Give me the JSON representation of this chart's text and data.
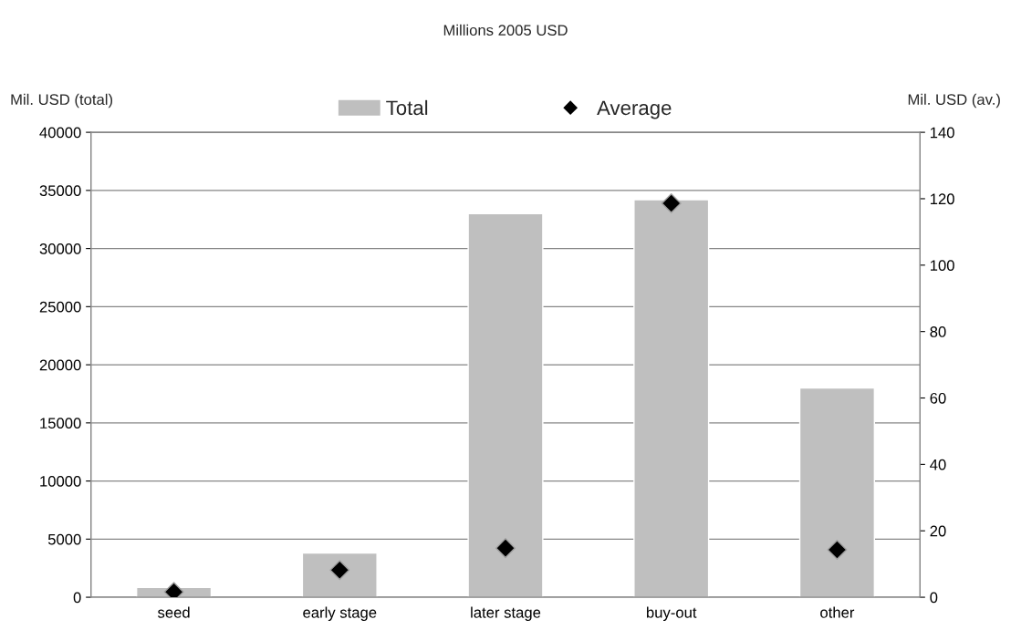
{
  "chart_data": {
    "type": "bar",
    "title": "Millions 2005 USD",
    "ylabel": "Mil. USD (total)",
    "y2label": "Mil. USD (av.)",
    "categories": [
      "seed",
      "early stage",
      "later stage",
      "buy-out",
      "other"
    ],
    "series": [
      {
        "name": "Total",
        "color": "#bfbfbf",
        "values": [
          850,
          3800,
          33000,
          34200,
          18000
        ]
      },
      {
        "name": "Average",
        "type": "scatter",
        "axis": "y2",
        "marker": "diamond",
        "color": "#000000",
        "values": [
          1.6,
          8.2,
          14.8,
          118.6,
          14.3
        ]
      }
    ],
    "ylim": [
      0,
      40000
    ],
    "yticks": [
      0,
      5000,
      10000,
      15000,
      20000,
      25000,
      30000,
      35000,
      40000
    ],
    "y2lim": [
      0,
      140
    ],
    "y2ticks": [
      0,
      20,
      40,
      60,
      80,
      100,
      120,
      140
    ],
    "grid": "y",
    "legend": "top"
  }
}
